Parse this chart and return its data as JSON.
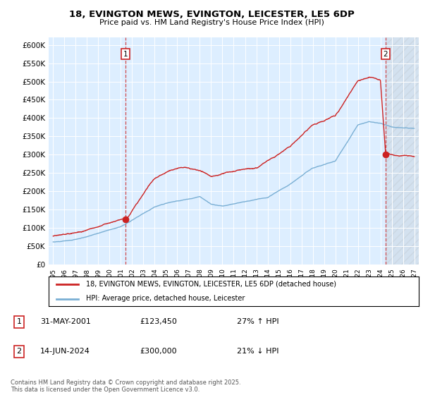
{
  "title1": "18, EVINGTON MEWS, EVINGTON, LEICESTER, LE5 6DP",
  "title2": "Price paid vs. HM Land Registry's House Price Index (HPI)",
  "sale1_date": "31-MAY-2001",
  "sale1_price": 123450,
  "sale1_hpi": "27% ↑ HPI",
  "sale2_date": "14-JUN-2024",
  "sale2_price": 300000,
  "sale2_hpi": "21% ↓ HPI",
  "legend1": "18, EVINGTON MEWS, EVINGTON, LEICESTER, LE5 6DP (detached house)",
  "legend2": "HPI: Average price, detached house, Leicester",
  "footer": "Contains HM Land Registry data © Crown copyright and database right 2025.\nThis data is licensed under the Open Government Licence v3.0.",
  "red_color": "#cc2222",
  "blue_color": "#7aafd4",
  "bg_color": "#ddeeff",
  "marker1_x": 2001.42,
  "marker1_y": 123450,
  "marker2_x": 2024.45,
  "marker2_y": 300000,
  "ylim": [
    0,
    620000
  ],
  "xlim_start": 1994.6,
  "xlim_end": 2027.4
}
